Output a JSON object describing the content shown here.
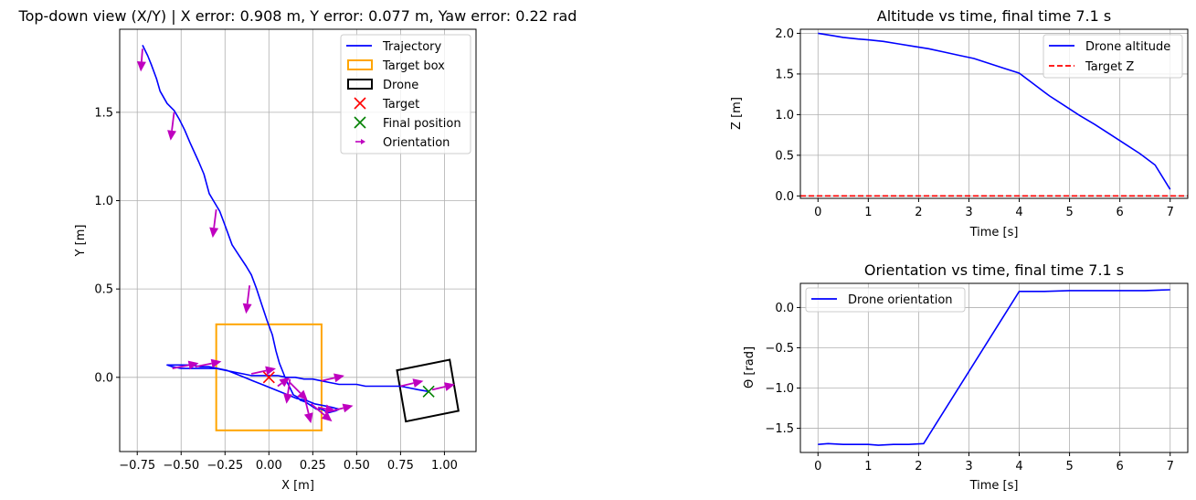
{
  "colors": {
    "trajectory": "#0000ff",
    "target_box": "#ffa500",
    "drone": "#000000",
    "target": "#ff0000",
    "final": "#008000",
    "orientation": "#bf00bf",
    "target_z": "#ff0000",
    "grid": "#b0b0b0"
  },
  "chart_data": [
    {
      "id": "topdown",
      "type": "line",
      "title": "Top-down view (X/Y) | X error: 0.908 m, Y error: 0.077 m, Yaw error: 0.22 rad",
      "xlabel": "X [m]",
      "ylabel": "Y [m]",
      "xlim": [
        -0.85,
        1.18
      ],
      "ylim": [
        -0.42,
        1.97
      ],
      "xticks": [
        -0.75,
        -0.5,
        -0.25,
        0.0,
        0.25,
        0.5,
        0.75,
        1.0
      ],
      "xtick_labels": [
        "−0.75",
        "−0.50",
        "−0.25",
        "0.00",
        "0.25",
        "0.50",
        "0.75",
        "1.00"
      ],
      "yticks": [
        0.0,
        0.5,
        1.0,
        1.5
      ],
      "ytick_labels": [
        "0.0",
        "0.5",
        "1.0",
        "1.5"
      ],
      "grid": true,
      "legend_position": "top-right",
      "legend": [
        "Trajectory",
        "Target box",
        "Drone",
        "Target",
        "Final position",
        "Orientation"
      ],
      "trajectory": {
        "name": "Trajectory",
        "x": [
          -0.72,
          -0.69,
          -0.67,
          -0.64,
          -0.62,
          -0.58,
          -0.54,
          -0.51,
          -0.48,
          -0.45,
          -0.4,
          -0.37,
          -0.34,
          -0.31,
          -0.28,
          -0.25,
          -0.21,
          -0.17,
          -0.13,
          -0.1,
          -0.07,
          -0.04,
          -0.01,
          0.02,
          0.04,
          0.06,
          0.08,
          0.1,
          0.12,
          0.14,
          0.16,
          0.18,
          0.21,
          0.24,
          0.27,
          0.3,
          0.34,
          0.38,
          0.4,
          0.36,
          0.31,
          0.26,
          0.21,
          0.16,
          0.11,
          0.06,
          0.01,
          -0.04,
          -0.09,
          -0.14,
          -0.19,
          -0.24,
          -0.29,
          -0.34,
          -0.39,
          -0.44,
          -0.49,
          -0.54,
          -0.58,
          -0.55,
          -0.5,
          -0.45,
          -0.4,
          -0.35,
          -0.3,
          -0.25,
          -0.2,
          -0.15,
          -0.1,
          -0.05,
          0.0,
          0.05,
          0.1,
          0.15,
          0.2,
          0.25,
          0.3,
          0.35,
          0.4,
          0.45,
          0.5,
          0.55,
          0.6,
          0.65,
          0.7,
          0.75,
          0.8,
          0.85,
          0.91
        ],
        "y": [
          1.88,
          1.82,
          1.77,
          1.69,
          1.62,
          1.55,
          1.51,
          1.46,
          1.4,
          1.33,
          1.22,
          1.15,
          1.04,
          0.99,
          0.94,
          0.86,
          0.75,
          0.69,
          0.63,
          0.58,
          0.5,
          0.41,
          0.32,
          0.24,
          0.15,
          0.08,
          0.03,
          -0.02,
          -0.06,
          -0.1,
          -0.11,
          -0.13,
          -0.14,
          -0.16,
          -0.18,
          -0.18,
          -0.2,
          -0.19,
          -0.18,
          -0.17,
          -0.16,
          -0.15,
          -0.13,
          -0.12,
          -0.1,
          -0.08,
          -0.06,
          -0.04,
          -0.02,
          0.0,
          0.02,
          0.04,
          0.05,
          0.06,
          0.06,
          0.07,
          0.07,
          0.07,
          0.07,
          0.06,
          0.05,
          0.05,
          0.05,
          0.05,
          0.05,
          0.04,
          0.03,
          0.02,
          0.01,
          0.01,
          0.01,
          0.01,
          0.0,
          0.0,
          -0.01,
          -0.01,
          -0.02,
          -0.03,
          -0.04,
          -0.04,
          -0.04,
          -0.05,
          -0.05,
          -0.05,
          -0.05,
          -0.05,
          -0.06,
          -0.07,
          -0.08
        ]
      },
      "target_box": {
        "name": "Target box",
        "x": [
          -0.3,
          0.3
        ],
        "y": [
          -0.3,
          0.3
        ]
      },
      "drone_box": {
        "name": "Drone",
        "x": [
          0.73,
          1.03,
          1.08,
          0.78
        ],
        "y": [
          0.04,
          0.1,
          -0.19,
          -0.25
        ]
      },
      "target": {
        "name": "Target",
        "x": 0.0,
        "y": 0.0
      },
      "final_position": {
        "name": "Final position",
        "x": 0.91,
        "y": -0.08
      },
      "orientation": {
        "name": "Orientation",
        "arrows": [
          {
            "x": -0.72,
            "y": 1.86,
            "dx": -0.01,
            "dy": -0.13
          },
          {
            "x": -0.54,
            "y": 1.5,
            "dx": -0.02,
            "dy": -0.16
          },
          {
            "x": -0.3,
            "y": 0.95,
            "dx": -0.02,
            "dy": -0.16
          },
          {
            "x": -0.11,
            "y": 0.52,
            "dx": -0.02,
            "dy": -0.16
          },
          {
            "x": 0.12,
            "y": -0.03,
            "dx": 0.1,
            "dy": -0.1
          },
          {
            "x": 0.2,
            "y": -0.1,
            "dx": 0.04,
            "dy": -0.16
          },
          {
            "x": 0.24,
            "y": -0.15,
            "dx": 0.12,
            "dy": -0.1
          },
          {
            "x": 0.28,
            "y": -0.17,
            "dx": 0.1,
            "dy": -0.02
          },
          {
            "x": 0.36,
            "y": -0.19,
            "dx": 0.12,
            "dy": 0.03
          },
          {
            "x": 0.12,
            "y": -0.01,
            "dx": -0.02,
            "dy": -0.14
          },
          {
            "x": 0.05,
            "y": -0.05,
            "dx": 0.07,
            "dy": 0.05
          },
          {
            "x": -0.1,
            "y": 0.02,
            "dx": 0.14,
            "dy": 0.03
          },
          {
            "x": -0.42,
            "y": 0.06,
            "dx": 0.15,
            "dy": 0.03
          },
          {
            "x": -0.55,
            "y": 0.05,
            "dx": 0.15,
            "dy": 0.03
          },
          {
            "x": 0.3,
            "y": -0.02,
            "dx": 0.13,
            "dy": 0.03
          },
          {
            "x": 0.75,
            "y": -0.05,
            "dx": 0.13,
            "dy": 0.03
          },
          {
            "x": 0.93,
            "y": -0.07,
            "dx": 0.13,
            "dy": 0.03
          }
        ]
      }
    },
    {
      "id": "altitude",
      "type": "line",
      "title": "Altitude vs time, final time 7.1 s",
      "xlabel": "Time [s]",
      "ylabel": "Z [m]",
      "xlim": [
        -0.35,
        7.35
      ],
      "ylim": [
        -0.03,
        2.05
      ],
      "xticks": [
        0,
        1,
        2,
        3,
        4,
        5,
        6,
        7
      ],
      "xtick_labels": [
        "0",
        "1",
        "2",
        "3",
        "4",
        "5",
        "6",
        "7"
      ],
      "yticks": [
        0.0,
        0.5,
        1.0,
        1.5,
        2.0
      ],
      "ytick_labels": [
        "0.0",
        "0.5",
        "1.0",
        "1.5",
        "2.0"
      ],
      "grid": true,
      "legend_position": "top-right",
      "legend": [
        "Drone altitude",
        "Target Z"
      ],
      "series": [
        {
          "name": "Drone altitude",
          "x": [
            0.0,
            0.1,
            0.3,
            0.5,
            0.8,
            1.0,
            1.3,
            1.6,
            1.9,
            2.2,
            2.5,
            2.8,
            3.1,
            3.4,
            3.7,
            4.0,
            4.3,
            4.6,
            4.9,
            5.2,
            5.5,
            5.8,
            6.1,
            6.4,
            6.7,
            7.0
          ],
          "y": [
            2.0,
            1.99,
            1.97,
            1.95,
            1.93,
            1.92,
            1.9,
            1.87,
            1.84,
            1.81,
            1.77,
            1.73,
            1.69,
            1.63,
            1.57,
            1.51,
            1.37,
            1.23,
            1.11,
            0.99,
            0.88,
            0.76,
            0.64,
            0.52,
            0.38,
            0.08
          ]
        },
        {
          "name": "Target Z",
          "x": [
            -0.35,
            7.35
          ],
          "y": [
            0.0,
            0.0
          ]
        }
      ]
    },
    {
      "id": "orientation",
      "type": "line",
      "title": "Orientation vs time, final time 7.1 s",
      "xlabel": "Time [s]",
      "ylabel": "Θ [rad]",
      "xlim": [
        -0.35,
        7.35
      ],
      "ylim": [
        -1.8,
        0.3
      ],
      "xticks": [
        0,
        1,
        2,
        3,
        4,
        5,
        6,
        7
      ],
      "xtick_labels": [
        "0",
        "1",
        "2",
        "3",
        "4",
        "5",
        "6",
        "7"
      ],
      "yticks": [
        -1.5,
        -1.0,
        -0.5,
        0.0
      ],
      "ytick_labels": [
        "−1.5",
        "−1.0",
        "−0.5",
        "0.0"
      ],
      "grid": true,
      "legend_position": "top-left",
      "legend": [
        "Drone orientation"
      ],
      "series": [
        {
          "name": "Drone orientation",
          "x": [
            0.0,
            0.2,
            0.5,
            1.0,
            1.2,
            1.5,
            1.8,
            2.1,
            4.0,
            4.5,
            5.0,
            5.5,
            6.0,
            6.5,
            7.0
          ],
          "y": [
            -1.7,
            -1.69,
            -1.7,
            -1.7,
            -1.71,
            -1.7,
            -1.7,
            -1.69,
            0.2,
            0.2,
            0.21,
            0.21,
            0.21,
            0.21,
            0.22
          ]
        }
      ]
    }
  ]
}
